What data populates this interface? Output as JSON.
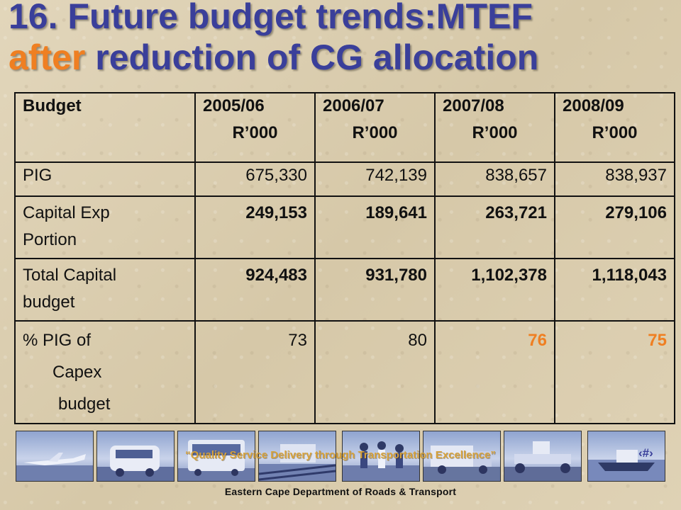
{
  "title": {
    "line1": "16.  Future budget trends:MTEF",
    "line2_accent": "after",
    "line2_rest": " reduction of CG allocation"
  },
  "colors": {
    "title": "#3a3f9a",
    "accent": "#ef7f22",
    "slogan": "#d6a13a"
  },
  "table": {
    "header": {
      "label": "Budget",
      "years": [
        "2005/06",
        "2006/07",
        "2007/08",
        "2008/09"
      ],
      "unit": "R’000"
    },
    "rows": [
      {
        "label_lines": [
          "PIG"
        ],
        "values": [
          "675,330",
          "742,139",
          "838,657",
          "838,937"
        ]
      },
      {
        "label_lines": [
          "Capital Exp",
          "Portion"
        ],
        "values": [
          "249,153",
          "189,641",
          "263,721",
          "279,106"
        ]
      },
      {
        "label_lines": [
          "Total Capital",
          "budget"
        ],
        "values": [
          "924,483",
          "931,780",
          "1,102,378",
          "1,118,043"
        ]
      },
      {
        "label_lines": [
          "% PIG of",
          "Capex",
          "budget"
        ],
        "values": [
          "73",
          "80",
          "76",
          "75"
        ]
      }
    ]
  },
  "thumbnails": [
    "airplane-photo",
    "minibus-photo",
    "bus-photo",
    "rail-photo",
    "people-photo",
    "truck-photo",
    "grader-photo",
    "boat-photo"
  ],
  "slogan": "“Quality Service Delivery through Transportation Excellence”",
  "page_number": "‹#›",
  "footer": "Eastern Cape Department of Roads & Transport"
}
